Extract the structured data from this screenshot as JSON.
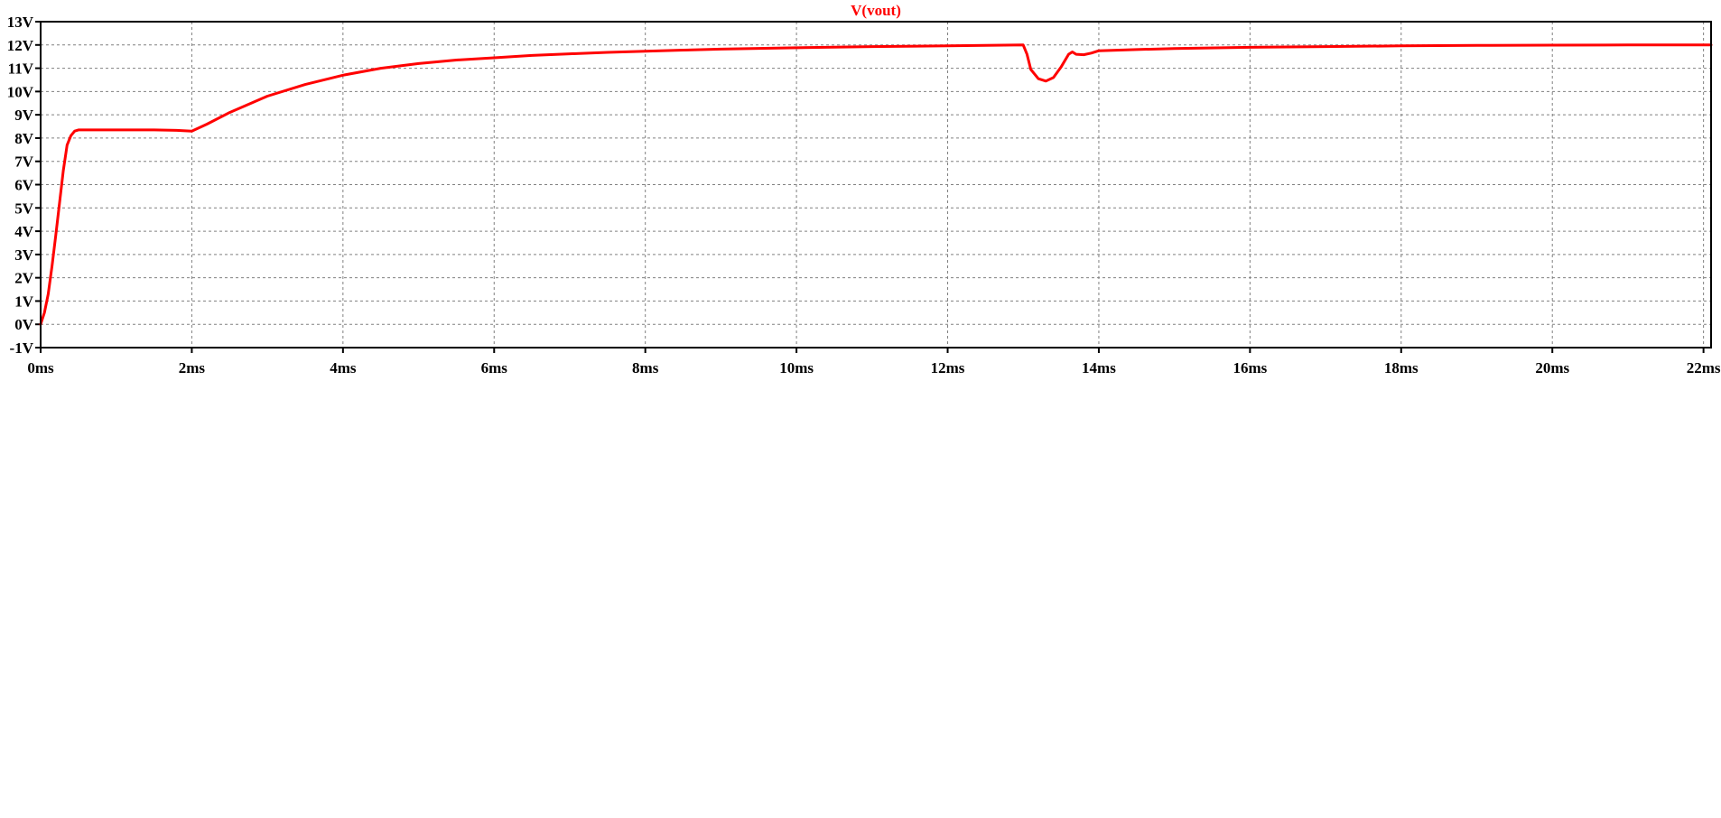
{
  "chart_data": {
    "type": "line",
    "title": "V(vout)",
    "xlabel": "",
    "ylabel": "",
    "grid": true,
    "xlim": [
      0,
      22.1
    ],
    "ylim": [
      -1,
      13
    ],
    "x_ticks": [
      0,
      2,
      4,
      6,
      8,
      10,
      12,
      14,
      16,
      18,
      20,
      22
    ],
    "x_tick_labels": [
      "0ms",
      "2ms",
      "4ms",
      "6ms",
      "8ms",
      "10ms",
      "12ms",
      "14ms",
      "16ms",
      "18ms",
      "20ms",
      "22ms"
    ],
    "y_ticks": [
      13,
      12,
      11,
      10,
      9,
      8,
      7,
      6,
      5,
      4,
      3,
      2,
      1,
      0,
      -1
    ],
    "y_tick_labels": [
      "13V",
      "12V",
      "11V",
      "10V",
      "9V",
      "8V",
      "7V",
      "6V",
      "5V",
      "4V",
      "3V",
      "2V",
      "1V",
      "0V",
      "-1V"
    ],
    "colors": {
      "trace": "#ff0000",
      "axes": "#000000",
      "grid": "#808080"
    },
    "series": [
      {
        "name": "V(vout)",
        "x": [
          0,
          0.05,
          0.1,
          0.15,
          0.2,
          0.25,
          0.3,
          0.35,
          0.4,
          0.45,
          0.5,
          0.6,
          1.0,
          1.5,
          1.8,
          2.0,
          2.2,
          2.5,
          3.0,
          3.5,
          4.0,
          4.5,
          5.0,
          5.5,
          6.0,
          6.5,
          7.0,
          7.5,
          8.0,
          8.5,
          9.0,
          10.0,
          11.0,
          12.0,
          12.5,
          13.0,
          13.05,
          13.1,
          13.2,
          13.3,
          13.4,
          13.5,
          13.6,
          13.65,
          13.7,
          13.8,
          13.9,
          14.0,
          14.5,
          15.0,
          16.0,
          17.0,
          18.0,
          19.0,
          20.0,
          21.0,
          22.1
        ],
        "y": [
          0.0,
          0.5,
          1.3,
          2.5,
          3.8,
          5.2,
          6.6,
          7.7,
          8.1,
          8.3,
          8.35,
          8.35,
          8.35,
          8.35,
          8.33,
          8.3,
          8.6,
          9.1,
          9.8,
          10.3,
          10.7,
          11.0,
          11.2,
          11.35,
          11.45,
          11.55,
          11.62,
          11.68,
          11.73,
          11.78,
          11.82,
          11.88,
          11.93,
          11.96,
          11.98,
          12.0,
          11.6,
          10.95,
          10.55,
          10.45,
          10.6,
          11.05,
          11.6,
          11.7,
          11.6,
          11.58,
          11.65,
          11.75,
          11.8,
          11.85,
          11.9,
          11.93,
          11.96,
          11.98,
          11.99,
          12.0,
          12.0
        ]
      }
    ]
  }
}
